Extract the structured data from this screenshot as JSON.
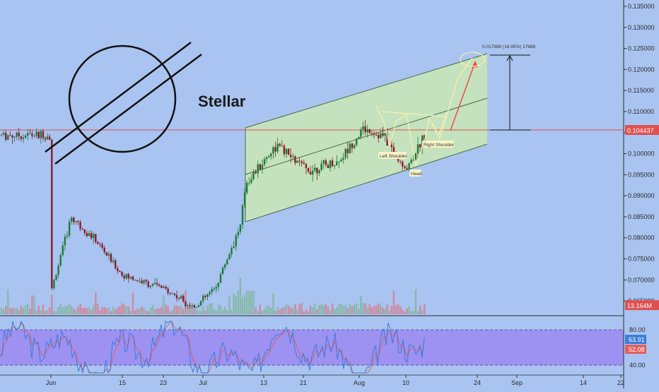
{
  "colors": {
    "background": "#a9c4f0",
    "candle_up": "#1f7a3a",
    "candle_down": "#8b1a2b",
    "channel_fill": "#c9e7b4",
    "price_line": "#e05050",
    "rsi_band": "#9b8cf2",
    "rsi_fast": "#3b7dd8",
    "rsi_slow": "#e06060",
    "pattern_line": "#f7f0b0",
    "projection_arrow": "#f04a4a",
    "measure_line": "#111111"
  },
  "annotations": {
    "logo_label": "Stellar",
    "left_shoulder": "Left Shoulder",
    "head": "Head",
    "right_shoulder": "Right Shoulder",
    "target_measure": "0.017688 (16.95%) 17688"
  },
  "price_axis": {
    "ticks": [
      "0.135000",
      "0.130000",
      "0.125000",
      "0.120000",
      "0.115000",
      "0.110000",
      "0.105000",
      "0.100000",
      "0.095000",
      "0.090000",
      "0.085000",
      "0.080000",
      "0.075000",
      "0.070000",
      "0.065000"
    ],
    "current_price": "0.104437",
    "volume_label": "13.164M"
  },
  "rsi_axis": {
    "ticks": [
      "80.00",
      "40.00"
    ],
    "value_fast": "63.91",
    "value_slow": "52.08"
  },
  "time_axis": {
    "ticks": [
      "Jun",
      "15",
      "23",
      "Jul",
      "13",
      "21",
      "Aug",
      "10",
      "24",
      "Sep",
      "14",
      "22"
    ]
  },
  "chart_data": {
    "type": "candlestick",
    "symbol_label": "Stellar",
    "price_range": [
      0.0615,
      0.136
    ],
    "rsi_range": [
      0,
      100
    ],
    "current_price": 0.104437,
    "price_checkpoints": [
      {
        "date": "May 24",
        "close": 0.066
      },
      {
        "date": "Jun 1",
        "close": 0.067
      },
      {
        "date": "Jun 5",
        "close": 0.085
      },
      {
        "date": "Jun 10",
        "close": 0.079
      },
      {
        "date": "Jun 15",
        "close": 0.071
      },
      {
        "date": "Jun 23",
        "close": 0.068
      },
      {
        "date": "Jun 29",
        "close": 0.0635
      },
      {
        "date": "Jul 3",
        "close": 0.068
      },
      {
        "date": "Jul 8",
        "close": 0.083
      },
      {
        "date": "Jul 9",
        "close": 0.093
      },
      {
        "date": "Jul 15",
        "close": 0.102
      },
      {
        "date": "Jul 21",
        "close": 0.096
      },
      {
        "date": "Jul 27",
        "close": 0.098
      },
      {
        "date": "Aug 1",
        "close": 0.106
      },
      {
        "date": "Aug 5",
        "close": 0.104
      },
      {
        "date": "Aug 9",
        "close": 0.096
      },
      {
        "date": "Aug 13",
        "close": 0.1044
      }
    ],
    "channel": {
      "upper": [
        {
          "date": "Jul 8",
          "price": 0.1045
        },
        {
          "date": "Aug 21",
          "price": 0.121
        }
      ],
      "lower": [
        {
          "date": "Jul 8",
          "price": 0.0825
        },
        {
          "date": "Aug 21",
          "price": 0.101
        }
      ]
    },
    "pattern": "head and shoulders",
    "projection": {
      "from_price": 0.1044,
      "to_price": 0.122,
      "change": 0.017688,
      "percent": 16.95
    },
    "rsi_levels": [
      80,
      40
    ]
  }
}
